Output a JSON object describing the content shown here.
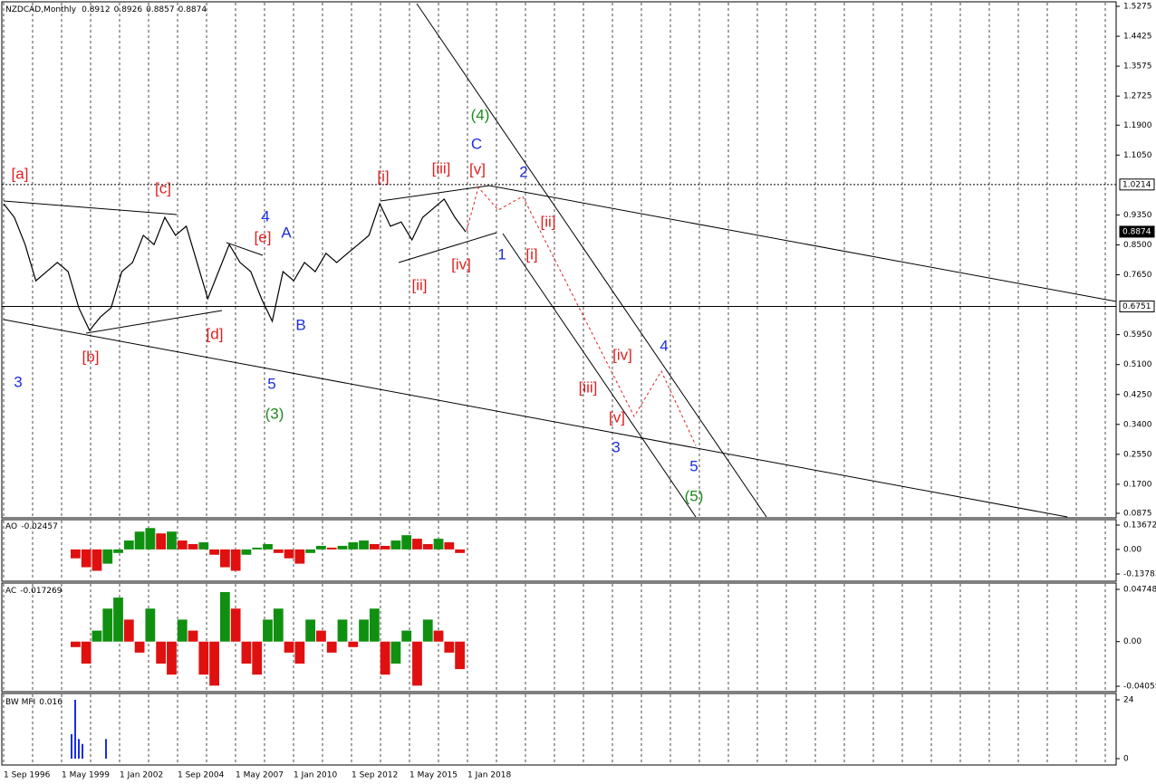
{
  "header": {
    "symbol": "NZDCAD,Monthly",
    "ohlc": [
      0.8912,
      0.8926,
      0.8857,
      0.8874
    ]
  },
  "price_axis": {
    "ylim": [
      0.0875,
      1.5275
    ],
    "ticks": [
      1.5275,
      1.4425,
      1.3575,
      1.2725,
      {
        "value": 1.19,
        "label": "1.1900"
      },
      {
        "value": 1.105,
        "label": "1.1050"
      },
      {
        "value": 0.935,
        "label": "0.9350"
      },
      {
        "value": 0.85,
        "label": "0.8500"
      },
      {
        "value": 0.765,
        "label": "0.7650"
      },
      {
        "value": 0.595,
        "label": "0.5950"
      },
      {
        "value": 0.51,
        "label": "0.5100"
      },
      {
        "value": 0.425,
        "label": "0.4250"
      },
      {
        "value": 0.34,
        "label": "0.3400"
      },
      {
        "value": 0.255,
        "label": "0.2550"
      },
      {
        "value": 0.17,
        "label": "0.1700"
      },
      0.0875
    ],
    "levels": {
      "resistance": 1.0214,
      "support": 0.6751,
      "current": 0.8874
    }
  },
  "price": [
    0.967,
    0.928,
    0.851,
    0.748,
    0.774,
    0.8,
    0.774,
    0.671,
    0.607,
    0.645,
    0.671,
    0.774,
    0.8,
    0.877,
    0.851,
    0.928,
    0.877,
    0.903,
    0.8,
    0.697,
    0.774,
    0.851,
    0.8,
    0.774,
    0.697,
    0.633,
    0.774,
    0.748,
    0.8,
    0.774,
    0.826,
    0.8,
    0.826,
    0.851,
    0.877,
    0.967,
    0.903,
    0.915,
    0.864,
    0.928,
    0.954,
    0.98,
    0.928,
    0.887
  ],
  "date_labels": [
    "1 Sep 1996",
    "1 May 1999",
    "1 Jan 2002",
    "1 Sep 2004",
    "1 May 2007",
    "1 Jan 2010",
    "1 Sep 2012",
    "1 May 2015",
    "1 Jan 2018"
  ],
  "waves": [
    {
      "text": "[a]",
      "color": "#e02020"
    },
    {
      "text": "[b]",
      "color": "#e02020"
    },
    {
      "text": "[c]",
      "color": "#e02020"
    },
    {
      "text": "[d]",
      "color": "#e02020"
    },
    {
      "text": "[e]",
      "color": "#e02020"
    },
    {
      "text": "4",
      "color": "#1a2ee0"
    },
    {
      "text": "A",
      "color": "#1a2ee0"
    },
    {
      "text": "B",
      "color": "#1a2ee0"
    },
    {
      "text": "5",
      "color": "#1a2ee0"
    },
    {
      "text": "(3)",
      "color": "#1e8a1e"
    },
    {
      "text": "3",
      "color": "#1a2ee0"
    },
    {
      "text": "[i]",
      "color": "#e02020"
    },
    {
      "text": "[ii]",
      "color": "#e02020"
    },
    {
      "text": "[iii]",
      "color": "#e02020"
    },
    {
      "text": "[iv]",
      "color": "#e02020"
    },
    {
      "text": "[v]",
      "color": "#e02020"
    },
    {
      "text": "(4)",
      "color": "#1e8a1e"
    },
    {
      "text": "C",
      "color": "#1a2ee0"
    },
    {
      "text": "1",
      "color": "#1a2ee0"
    },
    {
      "text": "2",
      "color": "#1a2ee0"
    },
    {
      "text": "[i]",
      "color": "#e02020"
    },
    {
      "text": "[ii]",
      "color": "#e02020"
    },
    {
      "text": "[iii]",
      "color": "#e02020"
    },
    {
      "text": "[iv]",
      "color": "#e02020"
    },
    {
      "text": "[v]",
      "color": "#e02020"
    },
    {
      "text": "3",
      "color": "#1a2ee0"
    },
    {
      "text": "4",
      "color": "#1a2ee0"
    },
    {
      "text": "5",
      "color": "#1a2ee0"
    },
    {
      "text": "(5)",
      "color": "#1e8a1e"
    }
  ],
  "ao": {
    "name": "AO",
    "last": -0.02457,
    "ylim": [
      -0.13783,
      0.13672
    ],
    "ticks": [
      0.13672,
      {
        "value": 0,
        "label": "0.00"
      },
      -0.13783
    ],
    "values": [
      -0.05,
      -0.1,
      -0.12,
      -0.08,
      -0.02,
      0.05,
      0.1,
      0.12,
      0.09,
      0.1,
      0.05,
      0.03,
      0.04,
      -0.03,
      -0.1,
      -0.12,
      -0.03,
      0.01,
      0.03,
      -0.02,
      -0.05,
      -0.08,
      -0.02,
      0.02,
      0.01,
      0.02,
      0.04,
      0.05,
      0.03,
      0.02,
      0.05,
      0.08,
      0.06,
      0.03,
      0.06,
      0.04,
      -0.02
    ]
  },
  "ac": {
    "name": "AC",
    "last": -0.017269,
    "ylim": [
      -0.04055,
      0.047481
    ],
    "ticks": [
      0.047481,
      {
        "value": 0,
        "label": "0.00"
      },
      -0.04055
    ],
    "values": [
      -0.005,
      -0.02,
      0.01,
      0.03,
      0.04,
      0.02,
      -0.01,
      0.03,
      -0.02,
      -0.03,
      0.02,
      0.01,
      -0.03,
      -0.04,
      0.045,
      0.03,
      -0.02,
      -0.03,
      0.02,
      0.03,
      -0.01,
      -0.02,
      0.02,
      0.01,
      -0.01,
      0.02,
      -0.005,
      0.02,
      0.03,
      -0.03,
      -0.02,
      0.01,
      -0.04,
      0.02,
      0.01,
      -0.01,
      -0.025
    ]
  },
  "mfi": {
    "name": "BW MFI",
    "last": 0.016,
    "ylim": [
      0,
      24
    ],
    "ticks": [
      24,
      0
    ],
    "values": [
      10,
      24,
      8,
      6,
      8
    ]
  }
}
